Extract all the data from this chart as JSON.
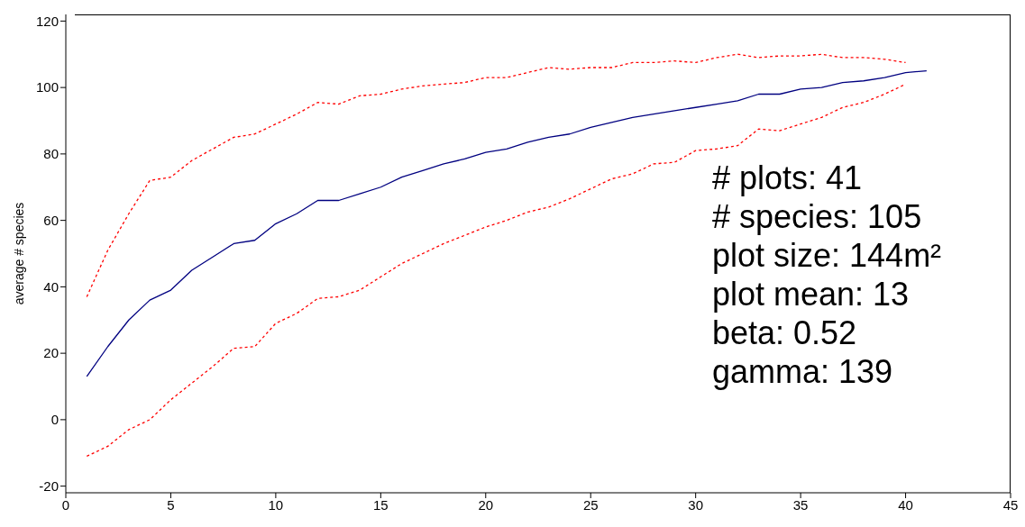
{
  "chart_data": {
    "type": "line",
    "ylabel": "average # species",
    "x": [
      1,
      2,
      3,
      4,
      5,
      6,
      7,
      8,
      9,
      10,
      11,
      12,
      13,
      14,
      15,
      16,
      17,
      18,
      19,
      20,
      21,
      22,
      23,
      24,
      25,
      26,
      27,
      28,
      29,
      30,
      31,
      32,
      33,
      34,
      35,
      36,
      37,
      38,
      39,
      40,
      41
    ],
    "series": [
      {
        "color": "#000080",
        "line_style": "solid",
        "values": [
          13,
          22,
          30,
          36,
          39,
          45,
          49,
          53,
          54,
          59,
          62,
          66,
          66,
          68,
          70,
          73,
          75,
          77,
          78.5,
          80.5,
          81.5,
          83.5,
          85,
          86,
          88,
          89.5,
          91,
          92,
          93,
          94,
          95,
          96,
          98,
          98,
          99.5,
          100,
          101.5,
          102,
          103,
          104.5,
          105
        ]
      },
      {
        "color": "#ff0000",
        "line_style": "dashed",
        "values": [
          37,
          51,
          62,
          72,
          73,
          78,
          81.5,
          85,
          86,
          89,
          92,
          95.5,
          95,
          97.5,
          98,
          99.5,
          100.5,
          101,
          101.5,
          103,
          103,
          104.5,
          106,
          105.5,
          106,
          106,
          107.5,
          107.5,
          108,
          107.5,
          109,
          110,
          109,
          109.5,
          109.5,
          110,
          109,
          109,
          108.5,
          107.5,
          null
        ]
      },
      {
        "color": "#ff0000",
        "line_style": "dashed",
        "values": [
          -11,
          -8,
          -3,
          0,
          6,
          11,
          16,
          21.5,
          22,
          29,
          32,
          36.5,
          37,
          39,
          43,
          47,
          50,
          53,
          55.5,
          58,
          60,
          62.5,
          64,
          66.5,
          69.5,
          72.5,
          74,
          77,
          77.5,
          81,
          81.5,
          82.5,
          87.5,
          87,
          89,
          91,
          94,
          95.5,
          98,
          101,
          null
        ]
      }
    ],
    "xlim": [
      0,
      45
    ],
    "xticks": [
      0,
      5,
      10,
      15,
      20,
      25,
      30,
      35,
      40,
      45
    ],
    "ylim": [
      -22,
      122
    ],
    "yticks": [
      -20,
      0,
      20,
      40,
      60,
      80,
      100,
      120
    ],
    "marker": "none",
    "annotations": [
      "# plots: 41",
      "# species: 105",
      "plot size: 144m²",
      "plot mean: 13",
      "beta: 0.52",
      "gamma: 139"
    ]
  }
}
